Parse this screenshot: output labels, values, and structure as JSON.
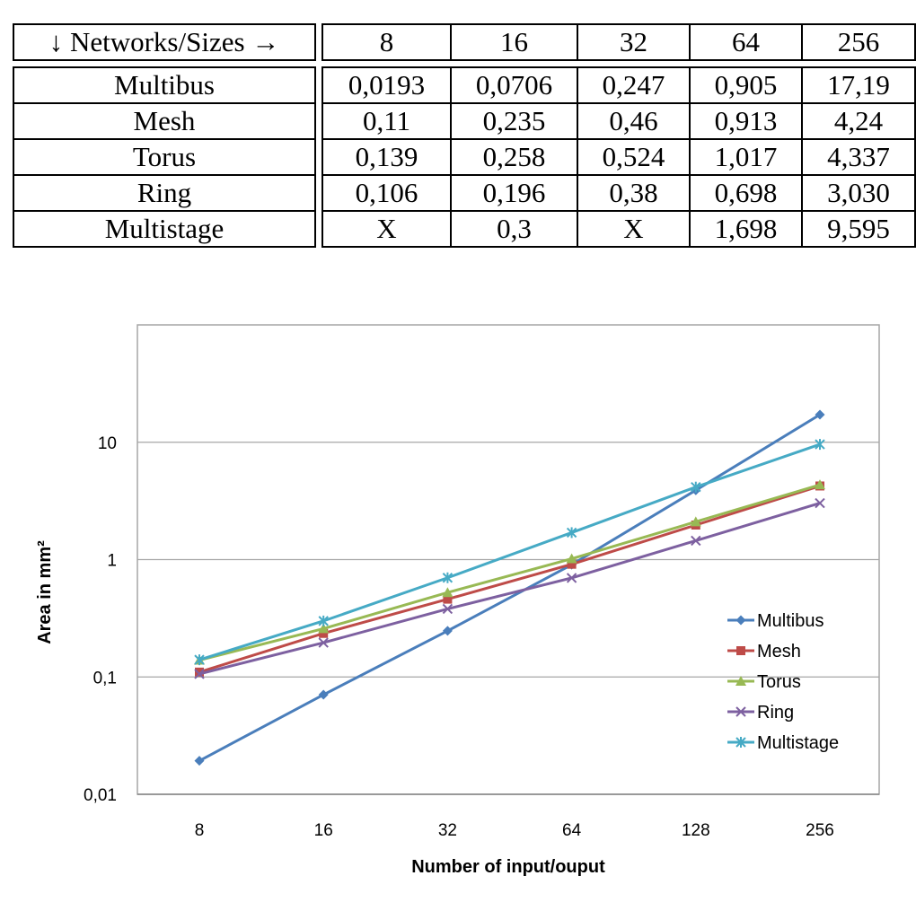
{
  "table": {
    "header": {
      "name": "↓ Networks/Sizes →",
      "sizes": [
        "8",
        "16",
        "32",
        "64",
        "256"
      ]
    },
    "rows": [
      {
        "name": "Multibus",
        "values": [
          "0,0193",
          "0,0706",
          "0,247",
          "0,905",
          "17,19"
        ]
      },
      {
        "name": "Mesh",
        "values": [
          "0,11",
          "0,235",
          "0,46",
          "0,913",
          "4,24"
        ]
      },
      {
        "name": "Torus",
        "values": [
          "0,139",
          "0,258",
          "0,524",
          "1,017",
          "4,337"
        ]
      },
      {
        "name": "Ring",
        "values": [
          "0,106",
          "0,196",
          "0,38",
          "0,698",
          "3,030"
        ]
      },
      {
        "name": "Multistage",
        "values": [
          "X",
          "0,3",
          "X",
          "1,698",
          "9,595"
        ]
      }
    ]
  },
  "chart_data": {
    "type": "line",
    "title": "",
    "xlabel": "Number of input/ouput",
    "ylabel": "Area in mm²",
    "categories": [
      "8",
      "16",
      "32",
      "64",
      "128",
      "256"
    ],
    "y_scale": "log",
    "ylim": [
      0.01,
      100
    ],
    "y_ticks": [
      {
        "value": 0.01,
        "label": "0,01"
      },
      {
        "value": 0.1,
        "label": "0,1"
      },
      {
        "value": 1,
        "label": "1"
      },
      {
        "value": 10,
        "label": "10"
      }
    ],
    "grid": true,
    "legend_position": "right",
    "series": [
      {
        "name": "Multibus",
        "color": "#4a7ebb",
        "marker": "diamond",
        "values": [
          0.0193,
          0.0706,
          0.247,
          0.905,
          3.9,
          17.19
        ]
      },
      {
        "name": "Mesh",
        "color": "#be4b48",
        "marker": "square",
        "values": [
          0.11,
          0.235,
          0.46,
          0.913,
          1.97,
          4.24
        ]
      },
      {
        "name": "Torus",
        "color": "#98b954",
        "marker": "triangle",
        "values": [
          0.139,
          0.258,
          0.524,
          1.017,
          2.1,
          4.337
        ]
      },
      {
        "name": "Ring",
        "color": "#7d60a0",
        "marker": "x",
        "values": [
          0.106,
          0.196,
          0.38,
          0.698,
          1.45,
          3.03
        ]
      },
      {
        "name": "Multistage",
        "color": "#46aac5",
        "marker": "star",
        "values": [
          0.14,
          0.3,
          0.7,
          1.698,
          4.15,
          9.595
        ]
      }
    ]
  }
}
